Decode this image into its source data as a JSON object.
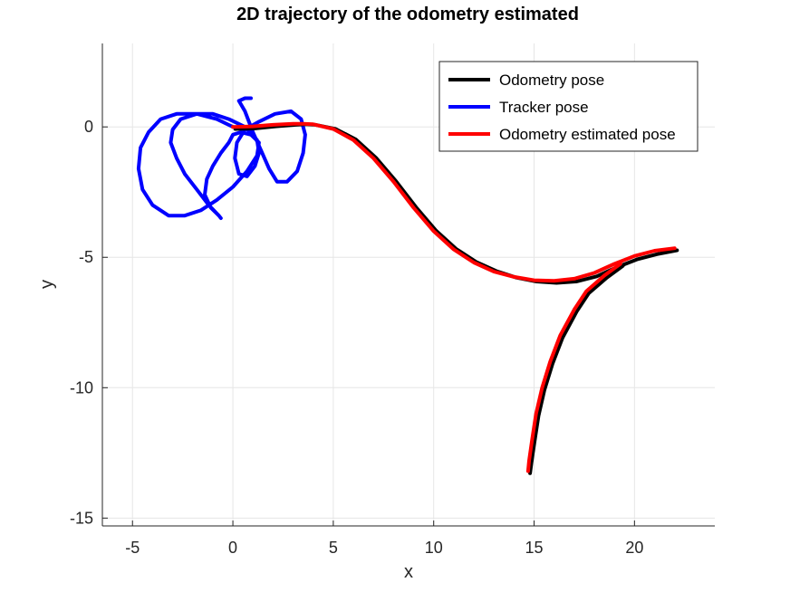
{
  "chart_data": {
    "type": "line",
    "title": "2D trajectory of the odometry estimated",
    "xlabel": "x",
    "ylabel": "y",
    "xlim": [
      -6.5,
      24
    ],
    "ylim": [
      -15.3,
      3.2
    ],
    "xticks": [
      -5,
      0,
      5,
      10,
      15,
      20
    ],
    "yticks": [
      0,
      -5,
      -10,
      -15
    ],
    "xtick_labels": [
      "-5",
      "0",
      "5",
      "10",
      "15",
      "20"
    ],
    "ytick_labels": [
      "0",
      "-5",
      "-10",
      "-15"
    ],
    "grid": true,
    "legend_position": "top-right",
    "series": [
      {
        "name": "Odometry pose",
        "color": "#000000",
        "offset": [
          0.12,
          -0.08
        ],
        "x": [
          0,
          1,
          2,
          3,
          3.5,
          4,
          5,
          6,
          7,
          8,
          9,
          10,
          11,
          12,
          13,
          14,
          15,
          16,
          17,
          18,
          19,
          20,
          21,
          22
        ],
        "y": [
          0,
          0.02,
          0.1,
          0.16,
          0.18,
          0.16,
          0,
          -0.4,
          -1.1,
          -2.0,
          -3.0,
          -3.9,
          -4.6,
          -5.1,
          -5.45,
          -5.7,
          -5.85,
          -5.9,
          -5.85,
          -5.65,
          -5.3,
          -5.0,
          -4.8,
          -4.65
        ],
        "branch": {
          "x": [
            17,
            16.3,
            15.8,
            15.4,
            15.1,
            14.9,
            14.75,
            14.68
          ],
          "y": [
            -7.0,
            -8.0,
            -9.0,
            -10.0,
            -11.0,
            -12.0,
            -12.8,
            -13.2
          ]
        }
      },
      {
        "name": "Tracker pose",
        "color": "#0000ff",
        "x": [
          0,
          -0.8,
          -1.8,
          -2.8,
          -3.6,
          -4.2,
          -4.6,
          -4.7,
          -4.5,
          -4.0,
          -3.2,
          -2.4,
          -1.6,
          -0.8,
          0,
          0.7,
          1.2,
          1.3,
          0.9,
          0.4,
          0,
          -0.2,
          -0.6,
          -1.0,
          -1.3,
          -1.4,
          -1.1,
          -0.7,
          -0.6,
          -0.7,
          -1.2,
          -1.8,
          -2.4,
          -2.8,
          -3.1,
          -3.0,
          -2.6,
          -1.8,
          -1.0,
          -0.2,
          0.6,
          1.2,
          1.3,
          1.1,
          0.7,
          0.3,
          0.1,
          0.2,
          0.6,
          1.3,
          2.1,
          2.9,
          3.4,
          3.6,
          3.5,
          3.2,
          2.7,
          2.2,
          1.8,
          1.4,
          1.0,
          0.6,
          0.3,
          0.6,
          0.9
        ],
        "y": [
          0,
          0.3,
          0.5,
          0.5,
          0.3,
          -0.2,
          -0.8,
          -1.6,
          -2.4,
          -3.0,
          -3.4,
          -3.4,
          -3.2,
          -2.8,
          -2.3,
          -1.7,
          -1.1,
          -0.6,
          -0.3,
          -0.2,
          -0.3,
          -0.6,
          -1.0,
          -1.5,
          -2.0,
          -2.6,
          -3.1,
          -3.4,
          -3.5,
          -3.4,
          -3.0,
          -2.4,
          -1.8,
          -1.2,
          -0.6,
          -0.1,
          0.3,
          0.5,
          0.5,
          0.3,
          0,
          -0.5,
          -1.0,
          -1.5,
          -1.9,
          -1.8,
          -1.2,
          -0.6,
          -0.1,
          0.2,
          0.5,
          0.6,
          0.3,
          -0.3,
          -1.0,
          -1.7,
          -2.1,
          -2.1,
          -1.6,
          -0.9,
          -0.2,
          0.6,
          1.0,
          1.1,
          1.1
        ]
      },
      {
        "name": "Odometry estimated pose",
        "color": "#ff0000",
        "offset": [
          0,
          0
        ],
        "x": [
          0,
          1,
          2,
          3,
          3.5,
          4,
          5,
          6,
          7,
          8,
          9,
          10,
          11,
          12,
          13,
          14,
          15,
          16,
          17,
          18,
          19,
          20,
          21,
          22
        ],
        "y": [
          0,
          0.02,
          0.08,
          0.12,
          0.12,
          0.1,
          -0.08,
          -0.5,
          -1.2,
          -2.1,
          -3.1,
          -4.0,
          -4.7,
          -5.2,
          -5.55,
          -5.75,
          -5.88,
          -5.9,
          -5.82,
          -5.6,
          -5.25,
          -4.95,
          -4.75,
          -4.65
        ],
        "branch": {
          "x": [
            17,
            16.3,
            15.8,
            15.4,
            15.1,
            14.9,
            14.75,
            14.7
          ],
          "y": [
            -7.0,
            -8.0,
            -9.0,
            -10.0,
            -11.0,
            -12.0,
            -12.8,
            -13.2
          ]
        }
      }
    ]
  }
}
